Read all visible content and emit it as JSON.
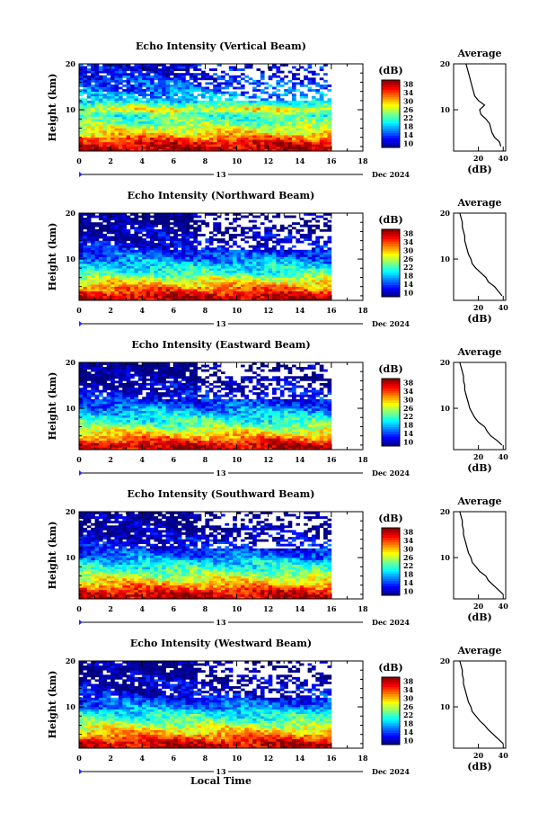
{
  "figure": {
    "x_axis_label": "Local Time",
    "date_label": "Dec 2024",
    "day_label": "13",
    "y_axis_label": "Height (km)",
    "avg_title": "Average",
    "avg_unit": "(dB)",
    "colorbar_unit": "(dB)"
  },
  "chart_data": [
    {
      "type": "heatmap",
      "title": "Echo Intensity (Vertical Beam)",
      "xlabel": "",
      "ylabel": "Height (km)",
      "x_ticks": [
        "0",
        "2",
        "4",
        "6",
        "8",
        "10",
        "12",
        "14",
        "16",
        "18"
      ],
      "xlim": [
        0,
        18
      ],
      "ylim": [
        1,
        20
      ],
      "y_ticks": [
        "10",
        "20"
      ],
      "data_extent_hours": [
        0,
        16
      ],
      "colorbar": {
        "ticks": [
          "10",
          "14",
          "18",
          "22",
          "26",
          "30",
          "34",
          "38"
        ],
        "range": [
          10,
          38
        ]
      },
      "layers_height_km": [
        2,
        3.5,
        5,
        7,
        9,
        10,
        12,
        14,
        16,
        18
      ],
      "layers_db": [
        36,
        33,
        28,
        24,
        22,
        28,
        19,
        17,
        15,
        13
      ],
      "average_profile": {
        "xlabel": "(dB)",
        "x_ticks": [
          "20",
          "40"
        ],
        "xlim": [
          0,
          42
        ],
        "height_km": [
          2,
          3,
          4,
          5,
          6,
          7,
          8,
          9,
          10,
          11,
          12,
          13,
          14,
          15,
          16,
          17,
          18,
          19,
          20
        ],
        "db": [
          38,
          37,
          33,
          31,
          30,
          29,
          26,
          22,
          21,
          25,
          20,
          17,
          16,
          15,
          14,
          13,
          12,
          11,
          10
        ]
      }
    },
    {
      "type": "heatmap",
      "title": "Echo Intensity (Northward Beam)",
      "xlabel": "",
      "ylabel": "Height (km)",
      "x_ticks": [
        "0",
        "2",
        "4",
        "6",
        "8",
        "10",
        "12",
        "14",
        "16",
        "18"
      ],
      "xlim": [
        0,
        18
      ],
      "ylim": [
        1,
        20
      ],
      "y_ticks": [
        "10",
        "20"
      ],
      "data_extent_hours": [
        0,
        16
      ],
      "colorbar": {
        "ticks": [
          "10",
          "14",
          "18",
          "22",
          "26",
          "30",
          "34",
          "38"
        ],
        "range": [
          10,
          38
        ]
      },
      "layers_height_km": [
        2,
        3.5,
        5,
        7,
        9,
        10,
        12,
        14,
        16,
        18
      ],
      "layers_db": [
        36,
        32,
        28,
        22,
        19,
        17,
        14,
        12,
        11,
        10
      ],
      "average_profile": {
        "xlabel": "(dB)",
        "x_ticks": [
          "20",
          "40"
        ],
        "xlim": [
          0,
          42
        ],
        "height_km": [
          2,
          3,
          4,
          5,
          6,
          7,
          8,
          9,
          10,
          11,
          12,
          13,
          14,
          15,
          16,
          17,
          18,
          19,
          20
        ],
        "db": [
          39,
          36,
          33,
          28,
          26,
          22,
          18,
          15,
          14,
          12,
          11,
          10,
          9,
          9,
          8,
          7,
          7,
          6,
          5
        ]
      }
    },
    {
      "type": "heatmap",
      "title": "Echo Intensity (Eastward Beam)",
      "xlabel": "",
      "ylabel": "Height (km)",
      "x_ticks": [
        "0",
        "2",
        "4",
        "6",
        "8",
        "10",
        "12",
        "14",
        "16",
        "18"
      ],
      "xlim": [
        0,
        18
      ],
      "ylim": [
        1,
        20
      ],
      "y_ticks": [
        "10",
        "20"
      ],
      "data_extent_hours": [
        0,
        16
      ],
      "colorbar": {
        "ticks": [
          "10",
          "14",
          "18",
          "22",
          "26",
          "30",
          "34",
          "38"
        ],
        "range": [
          10,
          38
        ]
      },
      "layers_height_km": [
        2,
        3.5,
        5,
        7,
        9,
        10,
        12,
        14,
        16,
        18
      ],
      "layers_db": [
        36,
        31,
        27,
        22,
        19,
        17,
        14,
        12,
        11,
        10
      ],
      "average_profile": {
        "xlabel": "(dB)",
        "x_ticks": [
          "20",
          "40"
        ],
        "xlim": [
          0,
          42
        ],
        "height_km": [
          2,
          3,
          4,
          5,
          6,
          7,
          8,
          9,
          10,
          11,
          12,
          13,
          14,
          15,
          16,
          17,
          18,
          19,
          20
        ],
        "db": [
          39,
          35,
          30,
          27,
          25,
          20,
          17,
          15,
          13,
          12,
          11,
          10,
          9,
          9,
          8,
          8,
          7,
          6,
          5
        ]
      }
    },
    {
      "type": "heatmap",
      "title": "Echo Intensity (Southward Beam)",
      "xlabel": "",
      "ylabel": "Height (km)",
      "x_ticks": [
        "0",
        "2",
        "4",
        "6",
        "8",
        "10",
        "12",
        "14",
        "16",
        "18"
      ],
      "xlim": [
        0,
        18
      ],
      "ylim": [
        1,
        20
      ],
      "y_ticks": [
        "10",
        "20"
      ],
      "data_extent_hours": [
        0,
        16
      ],
      "colorbar": {
        "ticks": [
          "10",
          "14",
          "18",
          "22",
          "26",
          "30",
          "34",
          "38"
        ],
        "range": [
          10,
          38
        ]
      },
      "layers_height_km": [
        2,
        3.5,
        5,
        7,
        9,
        10,
        12,
        14,
        16,
        18
      ],
      "layers_db": [
        36,
        32,
        28,
        23,
        20,
        17,
        14,
        12,
        11,
        10
      ],
      "average_profile": {
        "xlabel": "(dB)",
        "x_ticks": [
          "20",
          "40"
        ],
        "xlim": [
          0,
          42
        ],
        "height_km": [
          2,
          3,
          4,
          5,
          6,
          7,
          8,
          9,
          10,
          11,
          12,
          13,
          14,
          15,
          16,
          17,
          18,
          19,
          20
        ],
        "db": [
          40,
          36,
          32,
          28,
          26,
          21,
          18,
          15,
          14,
          12,
          11,
          10,
          9,
          8,
          8,
          7,
          7,
          6,
          5
        ]
      }
    },
    {
      "type": "heatmap",
      "title": "Echo Intensity (Westward Beam)",
      "xlabel": "",
      "ylabel": "Height (km)",
      "x_ticks": [
        "0",
        "2",
        "4",
        "6",
        "8",
        "10",
        "12",
        "14",
        "16",
        "18"
      ],
      "xlim": [
        0,
        18
      ],
      "ylim": [
        1,
        20
      ],
      "y_ticks": [
        "10",
        "20"
      ],
      "data_extent_hours": [
        0,
        16
      ],
      "colorbar": {
        "ticks": [
          "10",
          "14",
          "18",
          "22",
          "26",
          "30",
          "34",
          "38"
        ],
        "range": [
          10,
          38
        ]
      },
      "layers_height_km": [
        2,
        3.5,
        5,
        7,
        9,
        10,
        12,
        14,
        16,
        18
      ],
      "layers_db": [
        36,
        32,
        28,
        23,
        20,
        17,
        14,
        12,
        11,
        10
      ],
      "average_profile": {
        "xlabel": "(dB)",
        "x_ticks": [
          "20",
          "40"
        ],
        "xlim": [
          0,
          42
        ],
        "height_km": [
          2,
          3,
          4,
          5,
          6,
          7,
          8,
          9,
          10,
          11,
          12,
          13,
          14,
          15,
          16,
          17,
          18,
          19,
          20
        ],
        "db": [
          40,
          36,
          32,
          28,
          25,
          21,
          18,
          15,
          14,
          12,
          11,
          10,
          9,
          8,
          8,
          7,
          7,
          6,
          5
        ]
      }
    }
  ]
}
